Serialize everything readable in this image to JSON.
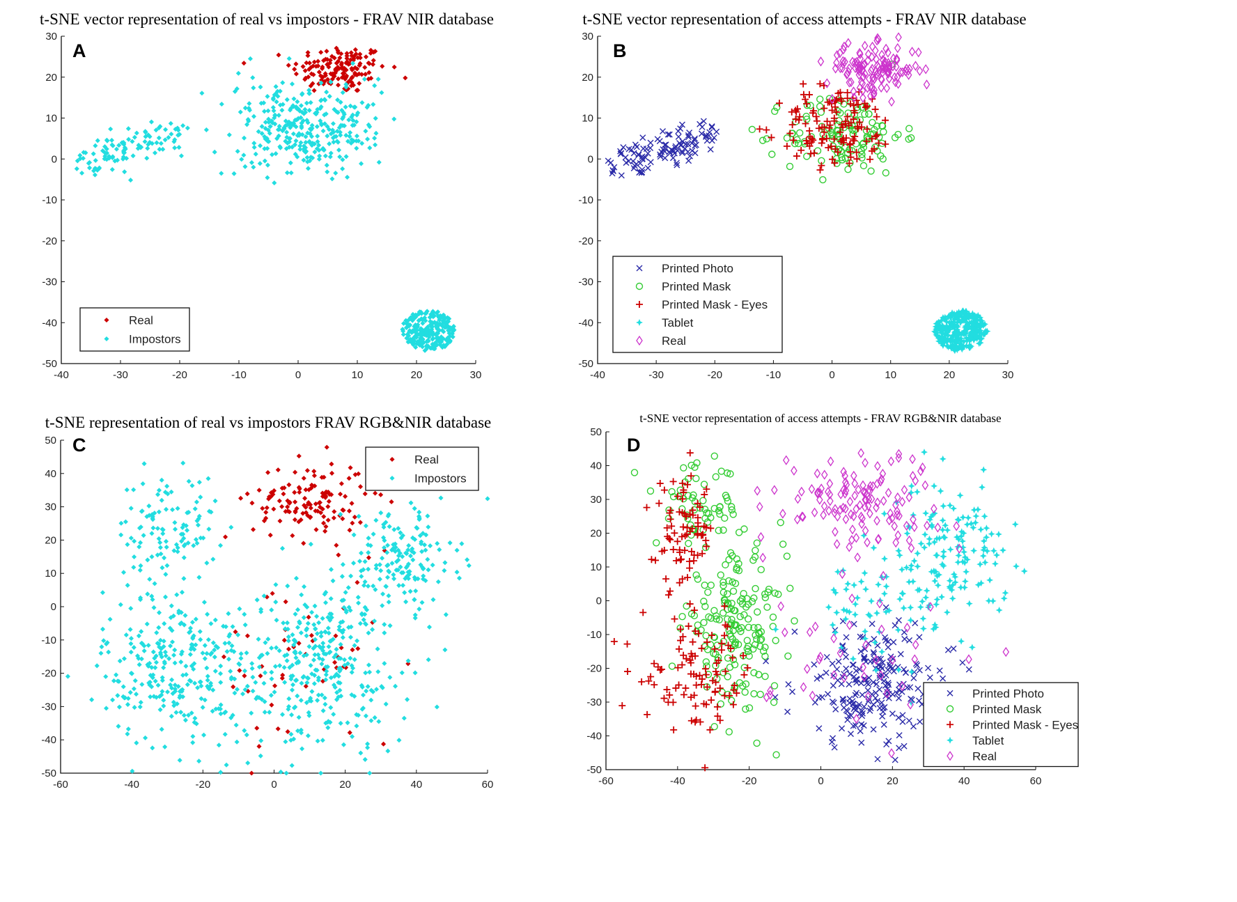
{
  "colors": {
    "red": "#cc0000",
    "cyan": "#22dde0",
    "blue": "#2a2aa8",
    "green": "#33cc33",
    "magenta": "#cc33cc"
  },
  "chart_data": [
    {
      "type": "scatter",
      "panel": "A",
      "title": "t-SNE vector representation of real vs impostors - FRAV NIR database",
      "xlim": [
        -40,
        30
      ],
      "ylim": [
        -50,
        30
      ],
      "xticks": [
        -40,
        -30,
        -20,
        -10,
        0,
        10,
        20,
        30
      ],
      "yticks": [
        -50,
        -40,
        -30,
        -20,
        -10,
        0,
        10,
        20,
        30
      ],
      "legend": "bottom-left",
      "series": [
        {
          "name": "Real",
          "marker": "dot",
          "color": "#cc0000",
          "clusters": [
            {
              "kind": "gauss",
              "c": [
                7,
                22
              ],
              "s": [
                4,
                3
              ],
              "n": 150
            }
          ]
        },
        {
          "name": "Impostors",
          "marker": "dot",
          "color": "#22dde0",
          "clusters": [
            {
              "kind": "line",
              "from": [
                -37,
                -1
              ],
              "to": [
                -20,
                6
              ],
              "w": 2,
              "n": 110
            },
            {
              "kind": "gauss",
              "c": [
                1,
                8
              ],
              "s": [
                6,
                5.5
              ],
              "n": 330
            },
            {
              "kind": "disk",
              "c": [
                22,
                -42
              ],
              "r": [
                4.5,
                5
              ],
              "n": 260
            }
          ]
        }
      ]
    },
    {
      "type": "scatter",
      "panel": "B",
      "title": "t-SNE vector representation of access attempts - FRAV NIR database",
      "xlim": [
        -40,
        30
      ],
      "ylim": [
        -50,
        30
      ],
      "xticks": [
        -40,
        -30,
        -20,
        -10,
        0,
        10,
        20,
        30
      ],
      "yticks": [
        -50,
        -40,
        -30,
        -20,
        -10,
        0,
        10,
        20,
        30
      ],
      "legend": "bottom-left",
      "series": [
        {
          "name": "Printed Photo",
          "marker": "x",
          "color": "#2a2aa8",
          "clusters": [
            {
              "kind": "line",
              "from": [
                -37,
                -1
              ],
              "to": [
                -20,
                6
              ],
              "w": 2,
              "n": 110
            }
          ]
        },
        {
          "name": "Printed Mask",
          "marker": "circle",
          "color": "#33cc33",
          "clusters": [
            {
              "kind": "gauss",
              "c": [
                2,
                6
              ],
              "s": [
                5,
                5
              ],
              "n": 120
            }
          ]
        },
        {
          "name": "Printed Mask - Eyes",
          "marker": "plus",
          "color": "#cc0000",
          "clusters": [
            {
              "kind": "gauss",
              "c": [
                1,
                8
              ],
              "s": [
                5,
                5
              ],
              "n": 130
            }
          ]
        },
        {
          "name": "Tablet",
          "marker": "star",
          "color": "#22dde0",
          "clusters": [
            {
              "kind": "disk",
              "c": [
                22,
                -42
              ],
              "r": [
                4.5,
                5
              ],
              "n": 300
            }
          ]
        },
        {
          "name": "Real",
          "marker": "diamond",
          "color": "#cc33cc",
          "clusters": [
            {
              "kind": "gauss",
              "c": [
                7,
                22
              ],
              "s": [
                4,
                3
              ],
              "n": 130
            }
          ]
        }
      ]
    },
    {
      "type": "scatter",
      "panel": "C",
      "title": "t-SNE representation of real vs impostors FRAV RGB&NIR database",
      "xlim": [
        -60,
        60
      ],
      "ylim": [
        -50,
        50
      ],
      "xticks": [
        -60,
        -40,
        -20,
        0,
        20,
        40,
        60
      ],
      "yticks": [
        -50,
        -40,
        -30,
        -20,
        -10,
        0,
        10,
        20,
        30,
        40,
        50
      ],
      "legend": "top-right",
      "series": [
        {
          "name": "Real",
          "marker": "dot",
          "color": "#cc0000",
          "clusters": [
            {
              "kind": "gauss",
              "c": [
                10,
                32
              ],
              "s": [
                8,
                6
              ],
              "n": 130
            },
            {
              "kind": "gauss",
              "c": [
                10,
                -18
              ],
              "s": [
                14,
                14
              ],
              "n": 50
            }
          ]
        },
        {
          "name": "Impostors",
          "marker": "dot",
          "color": "#22dde0",
          "clusters": [
            {
              "kind": "gauss",
              "c": [
                -30,
                24
              ],
              "s": [
                7,
                8
              ],
              "n": 110
            },
            {
              "kind": "gauss",
              "c": [
                -28,
                -18
              ],
              "s": [
                10,
                12
              ],
              "n": 280
            },
            {
              "kind": "gauss",
              "c": [
                12,
                -20
              ],
              "s": [
                13,
                12
              ],
              "n": 280
            },
            {
              "kind": "gauss",
              "c": [
                36,
                15
              ],
              "s": [
                8,
                8
              ],
              "n": 150
            },
            {
              "kind": "gauss",
              "c": [
                18,
                -4
              ],
              "s": [
                10,
                9
              ],
              "n": 80
            }
          ]
        }
      ]
    },
    {
      "type": "scatter",
      "panel": "D",
      "title": "t-SNE vector representation of access attempts - FRAV RGB&NIR database",
      "xlim": [
        -60,
        60
      ],
      "ylim": [
        -50,
        50
      ],
      "xticks": [
        -60,
        -40,
        -20,
        0,
        20,
        40,
        60
      ],
      "yticks": [
        -50,
        -40,
        -30,
        -20,
        -10,
        0,
        10,
        20,
        30,
        40,
        50
      ],
      "legend": "bottom-right",
      "series": [
        {
          "name": "Printed Photo",
          "marker": "x",
          "color": "#2a2aa8",
          "clusters": [
            {
              "kind": "gauss",
              "c": [
                15,
                -25
              ],
              "s": [
                11,
                9
              ],
              "n": 230
            }
          ]
        },
        {
          "name": "Printed Mask",
          "marker": "circle",
          "color": "#33cc33",
          "clusters": [
            {
              "kind": "gauss",
              "c": [
                -24,
                -8
              ],
              "s": [
                7,
                11
              ],
              "n": 180
            },
            {
              "kind": "gauss",
              "c": [
                -34,
                28
              ],
              "s": [
                6,
                6
              ],
              "n": 60
            }
          ]
        },
        {
          "name": "Printed Mask - Eyes",
          "marker": "plus",
          "color": "#cc0000",
          "clusters": [
            {
              "kind": "gauss",
              "c": [
                -38,
                20
              ],
              "s": [
                4,
                8
              ],
              "n": 80
            },
            {
              "kind": "gauss",
              "c": [
                -34,
                -22
              ],
              "s": [
                8,
                8
              ],
              "n": 100
            }
          ]
        },
        {
          "name": "Tablet",
          "marker": "star",
          "color": "#22dde0",
          "clusters": [
            {
              "kind": "gauss",
              "c": [
                36,
                14
              ],
              "s": [
                8,
                10
              ],
              "n": 150
            },
            {
              "kind": "gauss",
              "c": [
                15,
                -2
              ],
              "s": [
                10,
                8
              ],
              "n": 60
            }
          ]
        },
        {
          "name": "Real",
          "marker": "diamond",
          "color": "#cc33cc",
          "clusters": [
            {
              "kind": "gauss",
              "c": [
                10,
                30
              ],
              "s": [
                11,
                7
              ],
              "n": 130
            },
            {
              "kind": "gauss",
              "c": [
                15,
                -18
              ],
              "s": [
                14,
                12
              ],
              "n": 40
            }
          ]
        }
      ]
    }
  ]
}
